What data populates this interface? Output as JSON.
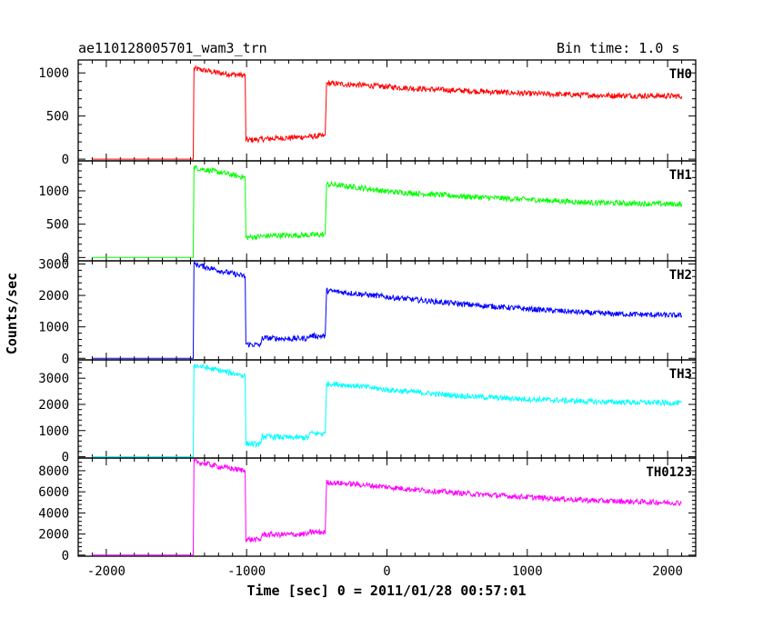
{
  "title": "ae110128005701_wam3_trn",
  "bin_time_label": "Bin time: 1.0 s",
  "chart_data": {
    "type": "line",
    "title": "ae110128005701_wam3_trn",
    "subtitle": "Bin time: 1.0 s",
    "xlabel": "Time [sec] 0 = 2011/01/28 00:57:01",
    "ylabel": "Counts/sec",
    "xlim": [
      -2200,
      2200
    ],
    "x_ticks": [
      -2000,
      -1000,
      0,
      1000,
      2000
    ],
    "grid": false,
    "panels": [
      {
        "name": "TH0",
        "color": "#ff0000",
        "ylim": [
          -20,
          1150
        ],
        "y_ticks": [
          0,
          500,
          1000
        ],
        "data": [
          [
            -2100,
            0
          ],
          [
            -1380,
            0
          ],
          [
            -1375,
            1050
          ],
          [
            -1200,
            1000
          ],
          [
            -1010,
            970
          ],
          [
            -1005,
            220
          ],
          [
            -800,
            240
          ],
          [
            -450,
            270
          ],
          [
            -440,
            280
          ],
          [
            -430,
            880
          ],
          [
            -200,
            860
          ],
          [
            0,
            840
          ],
          [
            300,
            810
          ],
          [
            600,
            790
          ],
          [
            1000,
            760
          ],
          [
            1500,
            740
          ],
          [
            2100,
            730
          ]
        ]
      },
      {
        "name": "TH1",
        "color": "#00ff00",
        "ylim": [
          -50,
          1450
        ],
        "y_ticks": [
          0,
          500,
          1000
        ],
        "data": [
          [
            -2100,
            0
          ],
          [
            -1380,
            0
          ],
          [
            -1375,
            1350
          ],
          [
            -1200,
            1280
          ],
          [
            -1010,
            1200
          ],
          [
            -1005,
            300
          ],
          [
            -800,
            330
          ],
          [
            -450,
            340
          ],
          [
            -440,
            350
          ],
          [
            -430,
            1100
          ],
          [
            -200,
            1050
          ],
          [
            0,
            990
          ],
          [
            300,
            950
          ],
          [
            600,
            910
          ],
          [
            1000,
            870
          ],
          [
            1500,
            820
          ],
          [
            2100,
            800
          ]
        ]
      },
      {
        "name": "TH2",
        "color": "#0000ff",
        "ylim": [
          -50,
          3100
        ],
        "y_ticks": [
          0,
          1000,
          2000,
          3000
        ],
        "data": [
          [
            -2100,
            0
          ],
          [
            -1380,
            0
          ],
          [
            -1375,
            3000
          ],
          [
            -1200,
            2800
          ],
          [
            -1010,
            2600
          ],
          [
            -1005,
            450
          ],
          [
            -900,
            420
          ],
          [
            -890,
            650
          ],
          [
            -700,
            620
          ],
          [
            -560,
            640
          ],
          [
            -550,
            720
          ],
          [
            -440,
            700
          ],
          [
            -430,
            2150
          ],
          [
            -200,
            2050
          ],
          [
            0,
            1950
          ],
          [
            300,
            1820
          ],
          [
            600,
            1700
          ],
          [
            1000,
            1570
          ],
          [
            1500,
            1430
          ],
          [
            2100,
            1360
          ]
        ]
      },
      {
        "name": "TH3",
        "color": "#00ffff",
        "ylim": [
          -50,
          3700
        ],
        "y_ticks": [
          0,
          1000,
          2000,
          3000
        ],
        "data": [
          [
            -2100,
            0
          ],
          [
            -1380,
            0
          ],
          [
            -1375,
            3500
          ],
          [
            -1200,
            3300
          ],
          [
            -1010,
            3100
          ],
          [
            -1005,
            500
          ],
          [
            -900,
            480
          ],
          [
            -890,
            780
          ],
          [
            -700,
            730
          ],
          [
            -560,
            730
          ],
          [
            -550,
            900
          ],
          [
            -440,
            880
          ],
          [
            -430,
            2800
          ],
          [
            -200,
            2700
          ],
          [
            0,
            2560
          ],
          [
            300,
            2420
          ],
          [
            600,
            2300
          ],
          [
            1000,
            2200
          ],
          [
            1500,
            2100
          ],
          [
            2100,
            2050
          ]
        ]
      },
      {
        "name": "TH0123",
        "color": "#ff00ff",
        "ylim": [
          -100,
          9200
        ],
        "y_ticks": [
          0,
          2000,
          4000,
          6000,
          8000
        ],
        "data": [
          [
            -2100,
            0
          ],
          [
            -1380,
            0
          ],
          [
            -1375,
            8900
          ],
          [
            -1200,
            8400
          ],
          [
            -1010,
            8000
          ],
          [
            -1005,
            1500
          ],
          [
            -900,
            1450
          ],
          [
            -890,
            1950
          ],
          [
            -700,
            1950
          ],
          [
            -560,
            2000
          ],
          [
            -550,
            2200
          ],
          [
            -440,
            2150
          ],
          [
            -430,
            6900
          ],
          [
            -200,
            6700
          ],
          [
            0,
            6450
          ],
          [
            300,
            6100
          ],
          [
            600,
            5800
          ],
          [
            1000,
            5500
          ],
          [
            1500,
            5150
          ],
          [
            2100,
            4950
          ]
        ]
      }
    ]
  }
}
